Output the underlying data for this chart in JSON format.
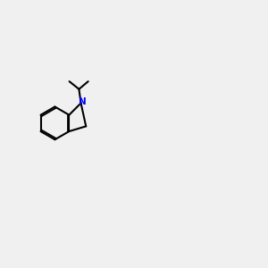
{
  "bg_color": "#f0f0f0",
  "bond_color": "#000000",
  "N_color": "#0000ff",
  "O_color": "#ff0000",
  "S_color": "#cccc00",
  "H_color": "#008080",
  "line_width": 1.5,
  "figsize": [
    3.0,
    3.0
  ],
  "dpi": 100
}
